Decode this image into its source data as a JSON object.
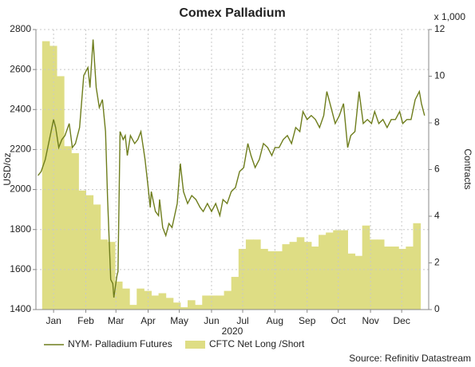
{
  "chart_data": {
    "type": "line",
    "title": "Comex Palladium",
    "y_label": "USD/oz",
    "y2_label": "Contracts",
    "y2_unit": "x 1,000",
    "x_label": "2020",
    "source": "Source: Refinitiv Datastream",
    "xlim": [
      -2,
      376
    ],
    "xticks": [
      {
        "value": 15,
        "label": "Jan"
      },
      {
        "value": 46,
        "label": "Feb"
      },
      {
        "value": 75,
        "label": "Mar"
      },
      {
        "value": 106,
        "label": "Apr"
      },
      {
        "value": 136,
        "label": "May"
      },
      {
        "value": 167,
        "label": "Jun"
      },
      {
        "value": 197,
        "label": "Jul"
      },
      {
        "value": 228,
        "label": "Aug"
      },
      {
        "value": 259,
        "label": "Sep"
      },
      {
        "value": 289,
        "label": "Oct"
      },
      {
        "value": 320,
        "label": "Nov"
      },
      {
        "value": 350,
        "label": "Dec"
      }
    ],
    "ylim": [
      1400,
      2800
    ],
    "yticks": [
      1400,
      1600,
      1800,
      2000,
      2200,
      2400,
      2600,
      2800
    ],
    "y2lim": [
      0,
      12
    ],
    "y2ticks": [
      0,
      2,
      4,
      6,
      8,
      10,
      12
    ],
    "grid": true,
    "series": [
      {
        "name": "CFTC Net Long /Short",
        "type": "area",
        "axis": "y2",
        "color": "#dedd84",
        "x": [
          4,
          11,
          18,
          25,
          32,
          39,
          46,
          53,
          60,
          67,
          74,
          81,
          88,
          95,
          102,
          109,
          116,
          123,
          130,
          137,
          144,
          151,
          158,
          165,
          172,
          179,
          186,
          193,
          200,
          207,
          214,
          221,
          228,
          235,
          242,
          249,
          256,
          263,
          270,
          277,
          284,
          291,
          298,
          305,
          312,
          319,
          326,
          333,
          340,
          347,
          354,
          361
        ],
        "values": [
          11.5,
          11.3,
          10.0,
          7.0,
          6.7,
          5.1,
          4.9,
          4.5,
          3.0,
          2.9,
          1.2,
          0.9,
          0.2,
          0.9,
          0.8,
          0.6,
          0.7,
          0.5,
          0.3,
          0.1,
          0.4,
          0.2,
          0.6,
          0.6,
          0.6,
          0.8,
          1.4,
          2.6,
          3.0,
          3.0,
          2.6,
          2.5,
          2.5,
          2.8,
          2.9,
          3.1,
          2.9,
          2.7,
          3.2,
          3.3,
          3.4,
          3.4,
          2.4,
          2.3,
          3.6,
          3.0,
          3.0,
          2.7,
          2.7,
          2.6,
          2.7,
          3.7
        ]
      },
      {
        "name": "NYM- Palladium Futures",
        "type": "line",
        "color": "#6e7d1c",
        "x": [
          0,
          3,
          7,
          11,
          15,
          17,
          20,
          23,
          26,
          30,
          33,
          36,
          40,
          44,
          48,
          50,
          53,
          56,
          59,
          62,
          65,
          67,
          70,
          72,
          73,
          76,
          77,
          79,
          82,
          84,
          86,
          89,
          93,
          96,
          99,
          103,
          106,
          108,
          109,
          113,
          116,
          117,
          120,
          123,
          126,
          129,
          134,
          137,
          140,
          144,
          148,
          152,
          156,
          159,
          163,
          167,
          171,
          175,
          178,
          182,
          186,
          190,
          194,
          198,
          202,
          205,
          209,
          213,
          217,
          221,
          225,
          228,
          232,
          236,
          240,
          244,
          248,
          252,
          255,
          259,
          263,
          267,
          271,
          275,
          278,
          282,
          286,
          290,
          294,
          298,
          301,
          305,
          309,
          313,
          317,
          321,
          324,
          328,
          332,
          336,
          340,
          344,
          348,
          351,
          355,
          359,
          363,
          367,
          369,
          372
        ],
        "values": [
          2070,
          2090,
          2150,
          2250,
          2350,
          2310,
          2210,
          2250,
          2270,
          2330,
          2210,
          2230,
          2310,
          2570,
          2610,
          2510,
          2750,
          2510,
          2410,
          2450,
          2290,
          1950,
          1550,
          1530,
          1460,
          1570,
          1590,
          2290,
          2250,
          2270,
          2170,
          2270,
          2230,
          2250,
          2290,
          2150,
          2010,
          1910,
          1990,
          1890,
          1870,
          1950,
          1810,
          1770,
          1830,
          1810,
          1930,
          2130,
          1990,
          1930,
          1970,
          1950,
          1910,
          1890,
          1930,
          1890,
          1930,
          1870,
          1950,
          1930,
          1990,
          2010,
          2090,
          2110,
          2230,
          2170,
          2110,
          2150,
          2230,
          2210,
          2170,
          2210,
          2210,
          2250,
          2270,
          2230,
          2310,
          2290,
          2390,
          2350,
          2370,
          2350,
          2310,
          2370,
          2490,
          2410,
          2330,
          2370,
          2430,
          2210,
          2270,
          2290,
          2490,
          2330,
          2350,
          2330,
          2390,
          2330,
          2350,
          2310,
          2350,
          2350,
          2390,
          2330,
          2350,
          2350,
          2450,
          2490,
          2430,
          2370
        ]
      }
    ]
  }
}
